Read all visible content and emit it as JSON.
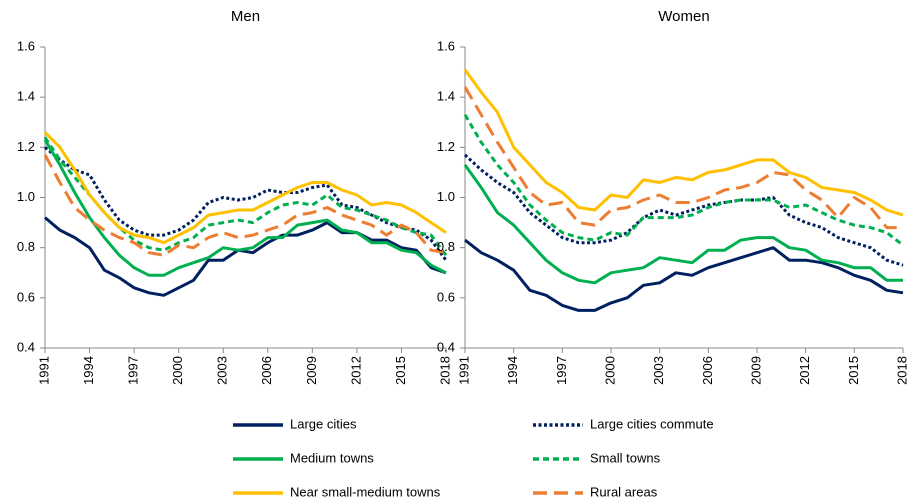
{
  "chart_data": [
    {
      "type": "line",
      "title": "Men",
      "x": [
        1991,
        1992,
        1993,
        1994,
        1995,
        1996,
        1997,
        1998,
        1999,
        2000,
        2001,
        2002,
        2003,
        2004,
        2005,
        2006,
        2007,
        2008,
        2009,
        2010,
        2011,
        2012,
        2013,
        2014,
        2015,
        2016,
        2017,
        2018
      ],
      "xlim": [
        1991,
        2018
      ],
      "xticks": [
        1991,
        1994,
        1997,
        2000,
        2003,
        2006,
        2009,
        2012,
        2015,
        2018
      ],
      "ylim": [
        0.4,
        1.6
      ],
      "yticks": [
        0.4,
        0.6,
        0.8,
        {
          "value": 1,
          "label": "1.0"
        },
        1.2,
        1.4,
        1.6
      ],
      "series": [
        {
          "name": "Large cities",
          "color": "#002060",
          "dash": "solid",
          "values": [
            0.92,
            0.87,
            0.84,
            0.8,
            0.71,
            0.68,
            0.64,
            0.62,
            0.61,
            0.64,
            0.67,
            0.75,
            0.75,
            0.79,
            0.78,
            0.82,
            0.85,
            0.85,
            0.87,
            0.9,
            0.86,
            0.86,
            0.83,
            0.83,
            0.8,
            0.79,
            0.72,
            0.7
          ]
        },
        {
          "name": "Large cities commute",
          "color": "#002060",
          "dash": "dotted",
          "values": [
            1.2,
            1.15,
            1.11,
            1.09,
            0.99,
            0.91,
            0.87,
            0.85,
            0.85,
            0.87,
            0.91,
            0.98,
            1.0,
            0.99,
            1.0,
            1.03,
            1.02,
            1.02,
            1.04,
            1.05,
            0.97,
            0.96,
            0.93,
            0.9,
            0.88,
            0.87,
            0.83,
            0.75
          ]
        },
        {
          "name": "Medium towns",
          "color": "#00b050",
          "dash": "solid",
          "values": [
            1.23,
            1.13,
            1.02,
            0.92,
            0.84,
            0.77,
            0.72,
            0.69,
            0.69,
            0.72,
            0.74,
            0.76,
            0.8,
            0.79,
            0.8,
            0.84,
            0.84,
            0.89,
            0.9,
            0.91,
            0.87,
            0.86,
            0.82,
            0.82,
            0.79,
            0.78,
            0.73,
            0.7
          ]
        },
        {
          "name": "Small towns",
          "color": "#00b050",
          "dash": "dashed",
          "values": [
            1.24,
            1.15,
            1.08,
            1.01,
            0.94,
            0.88,
            0.83,
            0.8,
            0.79,
            0.82,
            0.84,
            0.89,
            0.9,
            0.91,
            0.9,
            0.94,
            0.97,
            0.98,
            0.97,
            1.01,
            0.96,
            0.95,
            0.93,
            0.91,
            0.88,
            0.86,
            0.85,
            0.77
          ]
        },
        {
          "name": "Near small-medium towns",
          "color": "#ffc000",
          "dash": "solid",
          "values": [
            1.26,
            1.2,
            1.11,
            1.01,
            0.94,
            0.88,
            0.85,
            0.84,
            0.82,
            0.85,
            0.88,
            0.93,
            0.94,
            0.95,
            0.95,
            0.98,
            1.01,
            1.04,
            1.06,
            1.06,
            1.03,
            1.01,
            0.97,
            0.98,
            0.97,
            0.94,
            0.9,
            0.86
          ]
        },
        {
          "name": "Rural areas",
          "color": "#ed7d31",
          "dash": "longdash",
          "values": [
            1.17,
            1.06,
            0.96,
            0.91,
            0.87,
            0.84,
            0.82,
            0.78,
            0.77,
            0.81,
            0.8,
            0.84,
            0.86,
            0.84,
            0.85,
            0.87,
            0.89,
            0.93,
            0.94,
            0.96,
            0.93,
            0.91,
            0.89,
            0.85,
            0.89,
            0.86,
            0.79,
            0.78
          ]
        }
      ]
    },
    {
      "type": "line",
      "title": "Women",
      "x": [
        1991,
        1992,
        1993,
        1994,
        1995,
        1996,
        1997,
        1998,
        1999,
        2000,
        2001,
        2002,
        2003,
        2004,
        2005,
        2006,
        2007,
        2008,
        2009,
        2010,
        2011,
        2012,
        2013,
        2014,
        2015,
        2016,
        2017,
        2018
      ],
      "xlim": [
        1991,
        2018
      ],
      "xticks": [
        1991,
        1994,
        1997,
        2000,
        2003,
        2006,
        2009,
        2012,
        2015,
        2018
      ],
      "ylim": [
        0.4,
        1.6
      ],
      "yticks": [
        0.4,
        0.6,
        0.8,
        {
          "value": 1,
          "label": "1.0"
        },
        1.2,
        1.4,
        1.6
      ],
      "series": [
        {
          "color": "#002060",
          "dash": "solid",
          "values": [
            0.83,
            0.78,
            0.75,
            0.71,
            0.63,
            0.61,
            0.57,
            0.55,
            0.55,
            0.58,
            0.6,
            0.65,
            0.66,
            0.7,
            0.69,
            0.72,
            0.74,
            0.76,
            0.78,
            0.8,
            0.75,
            0.75,
            0.74,
            0.72,
            0.69,
            0.67,
            0.63,
            0.62
          ]
        },
        {
          "color": "#002060",
          "dash": "dotted",
          "values": [
            1.17,
            1.11,
            1.06,
            1.02,
            0.94,
            0.89,
            0.84,
            0.82,
            0.82,
            0.83,
            0.86,
            0.92,
            0.95,
            0.93,
            0.95,
            0.97,
            0.98,
            0.99,
            0.99,
            1.0,
            0.93,
            0.9,
            0.88,
            0.84,
            0.82,
            0.8,
            0.75,
            0.73
          ]
        },
        {
          "color": "#00b050",
          "dash": "solid",
          "values": [
            1.13,
            1.04,
            0.94,
            0.89,
            0.82,
            0.75,
            0.7,
            0.67,
            0.66,
            0.7,
            0.71,
            0.72,
            0.76,
            0.75,
            0.74,
            0.79,
            0.79,
            0.83,
            0.84,
            0.84,
            0.8,
            0.79,
            0.75,
            0.74,
            0.72,
            0.72,
            0.67,
            0.67
          ]
        },
        {
          "color": "#00b050",
          "dash": "dashed",
          "values": [
            1.33,
            1.22,
            1.13,
            1.06,
            0.97,
            0.91,
            0.86,
            0.84,
            0.83,
            0.86,
            0.85,
            0.92,
            0.92,
            0.92,
            0.93,
            0.96,
            0.98,
            0.99,
            0.99,
            0.99,
            0.96,
            0.97,
            0.94,
            0.91,
            0.89,
            0.88,
            0.86,
            0.81
          ]
        },
        {
          "color": "#ffc000",
          "dash": "solid",
          "values": [
            1.51,
            1.42,
            1.34,
            1.2,
            1.13,
            1.06,
            1.02,
            0.96,
            0.95,
            1.01,
            1.0,
            1.07,
            1.06,
            1.08,
            1.07,
            1.1,
            1.11,
            1.13,
            1.15,
            1.15,
            1.1,
            1.08,
            1.04,
            1.03,
            1.02,
            0.99,
            0.95,
            0.93
          ]
        },
        {
          "color": "#ed7d31",
          "dash": "longdash",
          "values": [
            1.44,
            1.33,
            1.22,
            1.12,
            1.02,
            0.97,
            0.98,
            0.9,
            0.89,
            0.95,
            0.96,
            0.99,
            1.01,
            0.98,
            0.98,
            1.0,
            1.03,
            1.04,
            1.06,
            1.1,
            1.09,
            1.03,
            0.99,
            0.92,
            1.0,
            0.96,
            0.88,
            0.88
          ]
        }
      ]
    }
  ]
}
